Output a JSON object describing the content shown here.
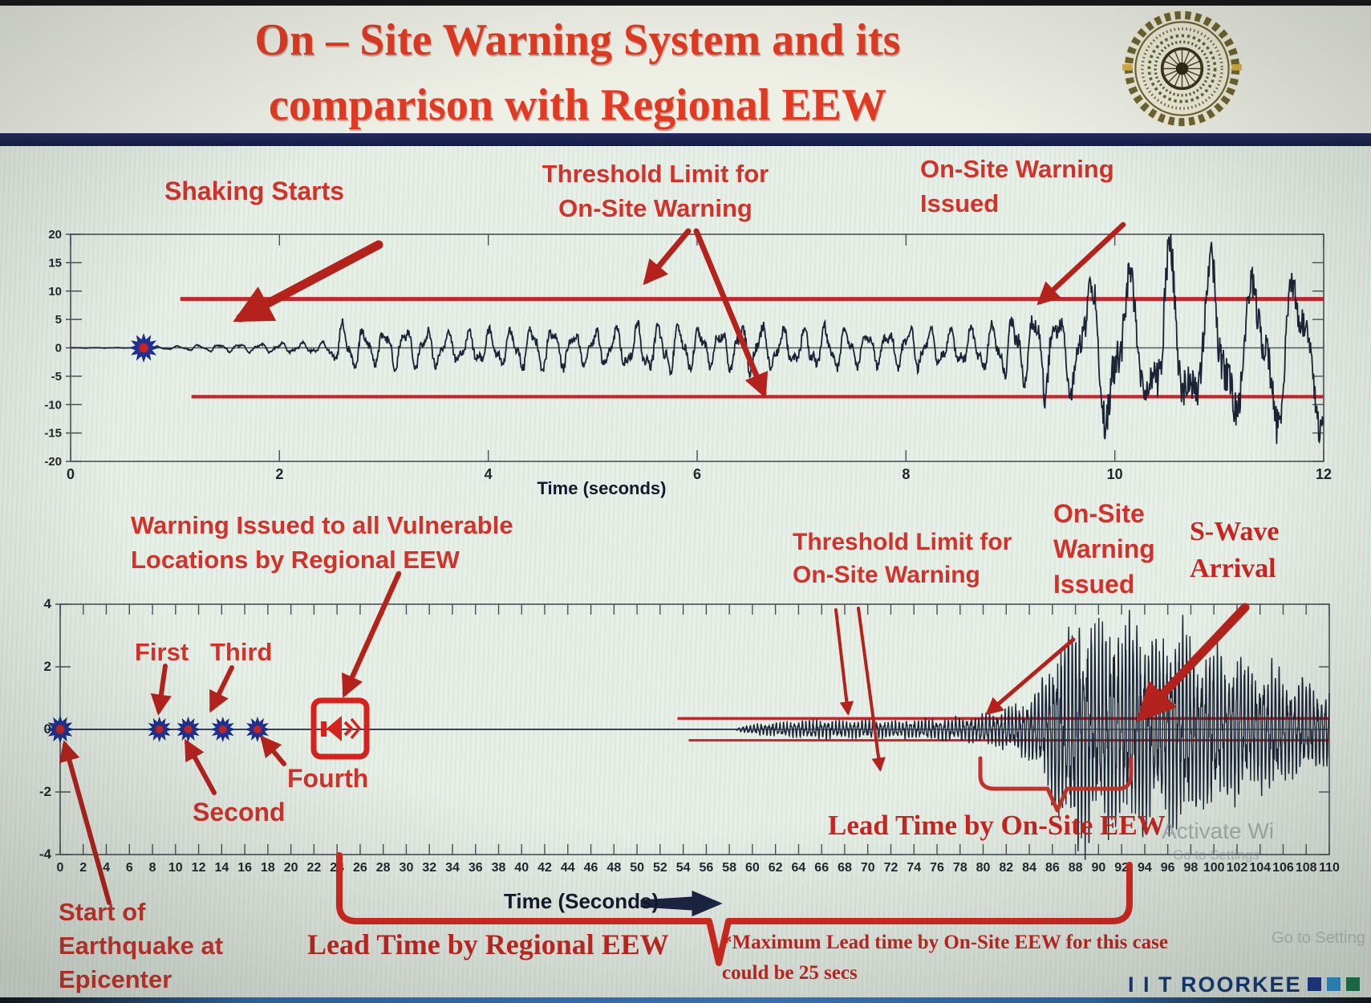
{
  "slide": {
    "title_line1": "On – Site Warning System and its",
    "title_line2": "comparison with Regional EEW"
  },
  "logo": {
    "institute": "Indian Institute of Technology Roorkee"
  },
  "annotations": {
    "top": {
      "shaking": "Shaking Starts",
      "threshold1": "Threshold Limit for",
      "threshold2": "On-Site Warning",
      "issued1": "On-Site Warning",
      "issued2": "Issued"
    },
    "bottom": {
      "regional1": "Warning Issued to all Vulnerable",
      "regional2": "Locations by Regional EEW",
      "first": "First",
      "second": "Second",
      "third": "Third",
      "fourth": "Fourth",
      "threshold1": "Threshold Limit for",
      "threshold2": "On-Site Warning",
      "onsite1": "On-Site",
      "onsite2": "Warning",
      "onsite3": "Issued",
      "swave1": "S-Wave",
      "swave2": "Arrival",
      "lead_onsite": "Lead Time by On-Site EEW",
      "start1": "Start of",
      "start2": "Earthquake at",
      "start3": "Epicenter"
    }
  },
  "footer": {
    "lead_time_regional": "Lead Time by Regional EEW",
    "note_line1": "*Maximum Lead time by On-Site EEW for this case",
    "note_line2": "could be 25 secs",
    "brand": "I I T ROORKEE"
  },
  "watermark": {
    "line1": "Activate Wi",
    "line2": "Go to Settings",
    "line3": "Go to Setting"
  },
  "chart_data": [
    {
      "type": "line",
      "name": "onsite-station-seismogram",
      "xlabel": "Time (seconds)",
      "xlim": [
        0,
        12
      ],
      "ylim": [
        -20,
        20
      ],
      "xticks": [
        0,
        2,
        4,
        6,
        8,
        10,
        12
      ],
      "yticks": [
        20,
        15,
        10,
        5,
        0,
        -5,
        -10,
        -15,
        -20
      ],
      "grid": false,
      "threshold_upper": 8.6,
      "threshold_lower": -8.6,
      "threshold_start_time": 1.05,
      "shaking_starts_time": 0.7,
      "warning_issued_time": 9.3,
      "wave_color": "#1b2336",
      "threshold_color": "#c1272d",
      "seed": 7,
      "freq_hz": [
        [
          0,
          5.0
        ],
        [
          9.2,
          5.0
        ],
        [
          9.8,
          2.6
        ],
        [
          12,
          2.4
        ]
      ],
      "amplitude_envelope": [
        [
          0,
          0.04
        ],
        [
          0.62,
          0.04
        ],
        [
          0.7,
          1.0
        ],
        [
          0.78,
          0.25
        ],
        [
          1.0,
          0.35
        ],
        [
          1.4,
          0.7
        ],
        [
          1.8,
          0.8
        ],
        [
          2.2,
          1.0
        ],
        [
          2.45,
          1.1
        ],
        [
          2.6,
          4.6
        ],
        [
          2.9,
          3.0
        ],
        [
          3.3,
          4.2
        ],
        [
          3.7,
          2.8
        ],
        [
          4.1,
          3.5
        ],
        [
          4.5,
          4.4
        ],
        [
          4.9,
          3.0
        ],
        [
          5.3,
          4.2
        ],
        [
          5.7,
          5.0
        ],
        [
          6.1,
          3.4
        ],
        [
          6.5,
          4.6
        ],
        [
          6.9,
          3.5
        ],
        [
          7.3,
          4.3
        ],
        [
          7.7,
          3.2
        ],
        [
          8.1,
          4.0
        ],
        [
          8.5,
          3.3
        ],
        [
          8.9,
          5.2
        ],
        [
          9.15,
          6.5
        ],
        [
          9.3,
          9.5
        ],
        [
          9.5,
          6.0
        ],
        [
          9.75,
          13.0
        ],
        [
          10.0,
          16.5
        ],
        [
          10.25,
          11.0
        ],
        [
          10.5,
          17.5
        ],
        [
          10.75,
          13.0
        ],
        [
          11.0,
          18.0
        ],
        [
          11.25,
          12.0
        ],
        [
          11.5,
          16.0
        ],
        [
          11.75,
          13.5
        ],
        [
          12,
          15.0
        ]
      ]
    },
    {
      "type": "line",
      "name": "regional-vs-onsite-timeline",
      "xlabel": "Time (Seconds)",
      "xlim": [
        0,
        110
      ],
      "ylim": [
        -4,
        4
      ],
      "xticks": [
        0,
        2,
        4,
        6,
        8,
        10,
        12,
        14,
        16,
        18,
        20,
        22,
        24,
        26,
        28,
        30,
        32,
        34,
        36,
        38,
        40,
        42,
        44,
        46,
        48,
        50,
        52,
        54,
        56,
        58,
        60,
        62,
        64,
        66,
        68,
        70,
        72,
        74,
        76,
        78,
        80,
        82,
        84,
        86,
        88,
        90,
        92,
        94,
        96,
        98,
        100,
        102,
        104,
        106,
        108,
        110
      ],
      "yticks": [
        4,
        2,
        0,
        -2,
        -4
      ],
      "grid": false,
      "threshold_upper": 0.35,
      "threshold_lower": -0.35,
      "threshold_start_time": 53.5,
      "epicenter_time": 0,
      "p_wave_detections": [
        {
          "label": "First",
          "t": 8.6
        },
        {
          "label": "Second",
          "t": 11.1
        },
        {
          "label": "Third",
          "t": 14.1
        },
        {
          "label": "Fourth",
          "t": 17.1
        }
      ],
      "regional_warning_time": 24,
      "onsite_warning_time": 80,
      "s_wave_arrival_time": 93,
      "lead_time_onsite_span": [
        80,
        93.5
      ],
      "lead_time_regional_span": [
        24,
        92.7
      ],
      "max_onsite_lead_time_secs": 25,
      "wave_color": "#1b2336",
      "threshold_color": "#c1272d",
      "seed": 13,
      "freq_hz": [
        [
          0,
          3.2
        ],
        [
          110,
          3.0
        ]
      ],
      "amplitude_envelope": [
        [
          0,
          0
        ],
        [
          58.5,
          0
        ],
        [
          58.8,
          0.05
        ],
        [
          59.5,
          0.12
        ],
        [
          60.5,
          0.17
        ],
        [
          62,
          0.21
        ],
        [
          64,
          0.25
        ],
        [
          66,
          0.29
        ],
        [
          68,
          0.25
        ],
        [
          70,
          0.3
        ],
        [
          72,
          0.26
        ],
        [
          74,
          0.3
        ],
        [
          76,
          0.33
        ],
        [
          78,
          0.37
        ],
        [
          79.5,
          0.42
        ],
        [
          81,
          0.5
        ],
        [
          82,
          0.62
        ],
        [
          83,
          0.75
        ],
        [
          84,
          0.95
        ],
        [
          85,
          1.4
        ],
        [
          86,
          2.2
        ],
        [
          87,
          3.0
        ],
        [
          88,
          3.5
        ],
        [
          89,
          3.6
        ],
        [
          90,
          3.0
        ],
        [
          91,
          3.4
        ],
        [
          92,
          2.8
        ],
        [
          93,
          3.5
        ],
        [
          94,
          3.0
        ],
        [
          95,
          2.6
        ],
        [
          96,
          3.0
        ],
        [
          97,
          3.3
        ],
        [
          98,
          2.7
        ],
        [
          99,
          2.3
        ],
        [
          100,
          2.6
        ],
        [
          101,
          2.1
        ],
        [
          102,
          2.4
        ],
        [
          103,
          1.9
        ],
        [
          104,
          1.8
        ],
        [
          105,
          2.0
        ],
        [
          106,
          1.6
        ],
        [
          107,
          1.35
        ],
        [
          108,
          1.5
        ],
        [
          109,
          1.25
        ],
        [
          110,
          1.15
        ]
      ]
    }
  ]
}
